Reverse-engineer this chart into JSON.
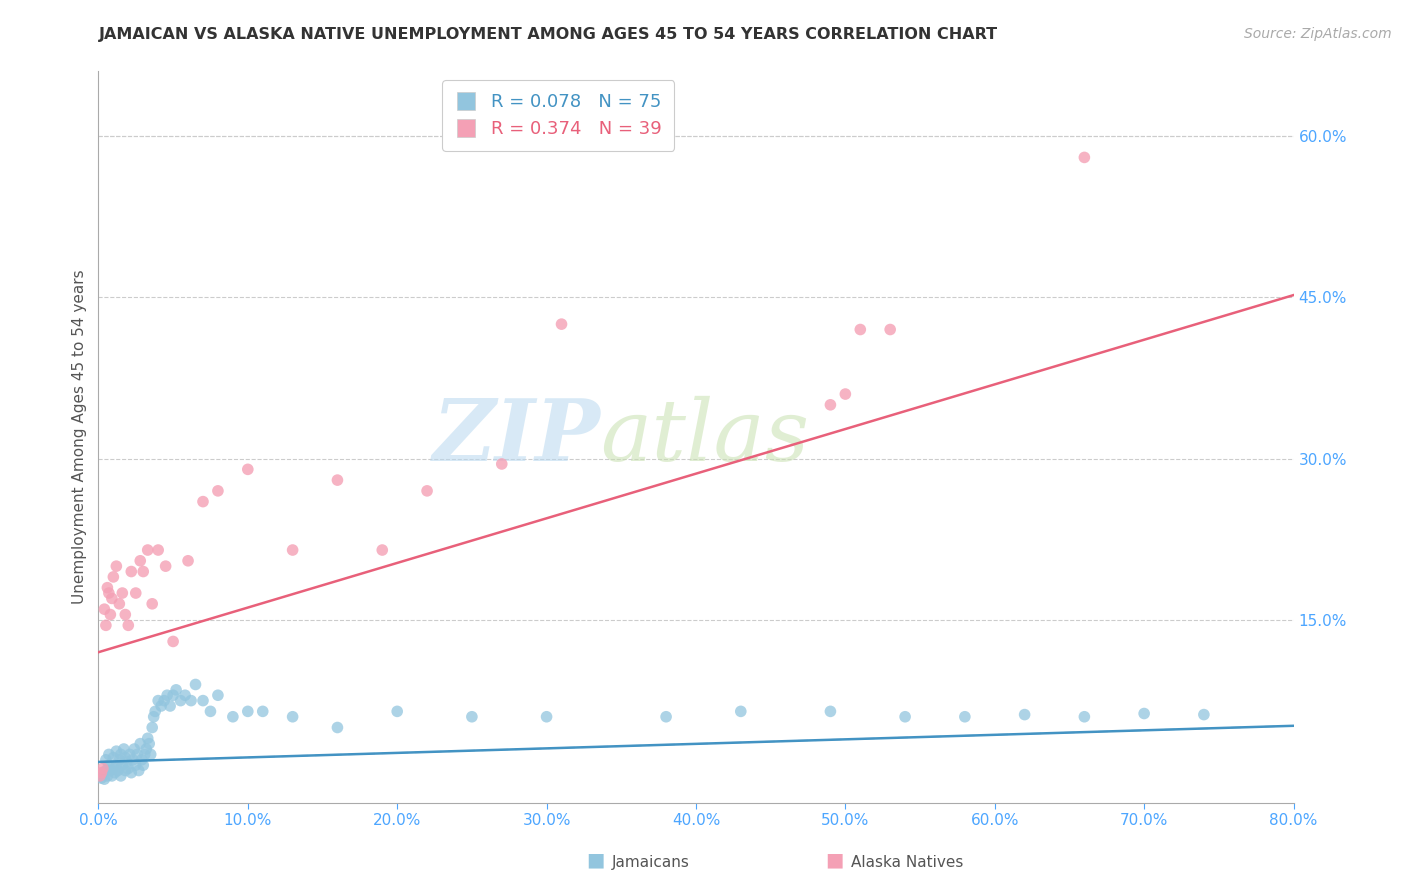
{
  "title": "JAMAICAN VS ALASKA NATIVE UNEMPLOYMENT AMONG AGES 45 TO 54 YEARS CORRELATION CHART",
  "source": "Source: ZipAtlas.com",
  "ylabel": "Unemployment Among Ages 45 to 54 years",
  "xlim": [
    0.0,
    0.8
  ],
  "ylim": [
    -0.02,
    0.66
  ],
  "xticks": [
    0.0,
    0.1,
    0.2,
    0.3,
    0.4,
    0.5,
    0.6,
    0.7,
    0.8
  ],
  "yticks_right": [
    0.15,
    0.3,
    0.45,
    0.6
  ],
  "jamaican_R": 0.078,
  "jamaican_N": 75,
  "alaska_R": 0.374,
  "alaska_N": 39,
  "jamaican_color": "#92c5de",
  "alaska_color": "#f4a0b5",
  "jamaican_line_color": "#4393c3",
  "alaska_line_color": "#e8607a",
  "background_color": "#ffffff",
  "grid_color": "#cccccc",
  "title_color": "#333333",
  "axis_label_color": "#555555",
  "tick_color": "#4da6ff",
  "watermark_zip": "ZIP",
  "watermark_atlas": "atlas",
  "jamaican_line_intercept": 0.018,
  "jamaican_line_slope": 0.042,
  "alaska_line_intercept": 0.12,
  "alaska_line_slope": 0.415,
  "jamaican_dots_x": [
    0.001,
    0.002,
    0.003,
    0.004,
    0.005,
    0.005,
    0.006,
    0.007,
    0.007,
    0.008,
    0.009,
    0.01,
    0.01,
    0.011,
    0.012,
    0.012,
    0.013,
    0.014,
    0.015,
    0.015,
    0.016,
    0.017,
    0.018,
    0.018,
    0.019,
    0.02,
    0.021,
    0.022,
    0.023,
    0.024,
    0.025,
    0.026,
    0.027,
    0.028,
    0.029,
    0.03,
    0.031,
    0.032,
    0.033,
    0.034,
    0.035,
    0.036,
    0.037,
    0.038,
    0.04,
    0.042,
    0.044,
    0.046,
    0.048,
    0.05,
    0.052,
    0.055,
    0.058,
    0.062,
    0.065,
    0.07,
    0.075,
    0.08,
    0.09,
    0.1,
    0.11,
    0.13,
    0.16,
    0.2,
    0.25,
    0.3,
    0.38,
    0.43,
    0.49,
    0.54,
    0.58,
    0.62,
    0.66,
    0.7,
    0.74
  ],
  "jamaican_dots_y": [
    0.005,
    0.003,
    0.008,
    0.002,
    0.01,
    0.02,
    0.005,
    0.015,
    0.025,
    0.01,
    0.005,
    0.012,
    0.022,
    0.008,
    0.015,
    0.028,
    0.01,
    0.02,
    0.005,
    0.025,
    0.015,
    0.03,
    0.01,
    0.022,
    0.018,
    0.012,
    0.025,
    0.008,
    0.02,
    0.03,
    0.015,
    0.025,
    0.01,
    0.035,
    0.02,
    0.015,
    0.025,
    0.03,
    0.04,
    0.035,
    0.025,
    0.05,
    0.06,
    0.065,
    0.075,
    0.07,
    0.075,
    0.08,
    0.07,
    0.08,
    0.085,
    0.075,
    0.08,
    0.075,
    0.09,
    0.075,
    0.065,
    0.08,
    0.06,
    0.065,
    0.065,
    0.06,
    0.05,
    0.065,
    0.06,
    0.06,
    0.06,
    0.065,
    0.065,
    0.06,
    0.06,
    0.062,
    0.06,
    0.063,
    0.062
  ],
  "alaska_dots_x": [
    0.001,
    0.002,
    0.003,
    0.004,
    0.005,
    0.006,
    0.007,
    0.008,
    0.009,
    0.01,
    0.012,
    0.014,
    0.016,
    0.018,
    0.02,
    0.022,
    0.025,
    0.028,
    0.03,
    0.033,
    0.036,
    0.04,
    0.045,
    0.05,
    0.06,
    0.07,
    0.08,
    0.1,
    0.13,
    0.16,
    0.19,
    0.22,
    0.27,
    0.31,
    0.49,
    0.5,
    0.51,
    0.53,
    0.66
  ],
  "alaska_dots_y": [
    0.005,
    0.008,
    0.012,
    0.16,
    0.145,
    0.18,
    0.175,
    0.155,
    0.17,
    0.19,
    0.2,
    0.165,
    0.175,
    0.155,
    0.145,
    0.195,
    0.175,
    0.205,
    0.195,
    0.215,
    0.165,
    0.215,
    0.2,
    0.13,
    0.205,
    0.26,
    0.27,
    0.29,
    0.215,
    0.28,
    0.215,
    0.27,
    0.295,
    0.425,
    0.35,
    0.36,
    0.42,
    0.42,
    0.58
  ]
}
